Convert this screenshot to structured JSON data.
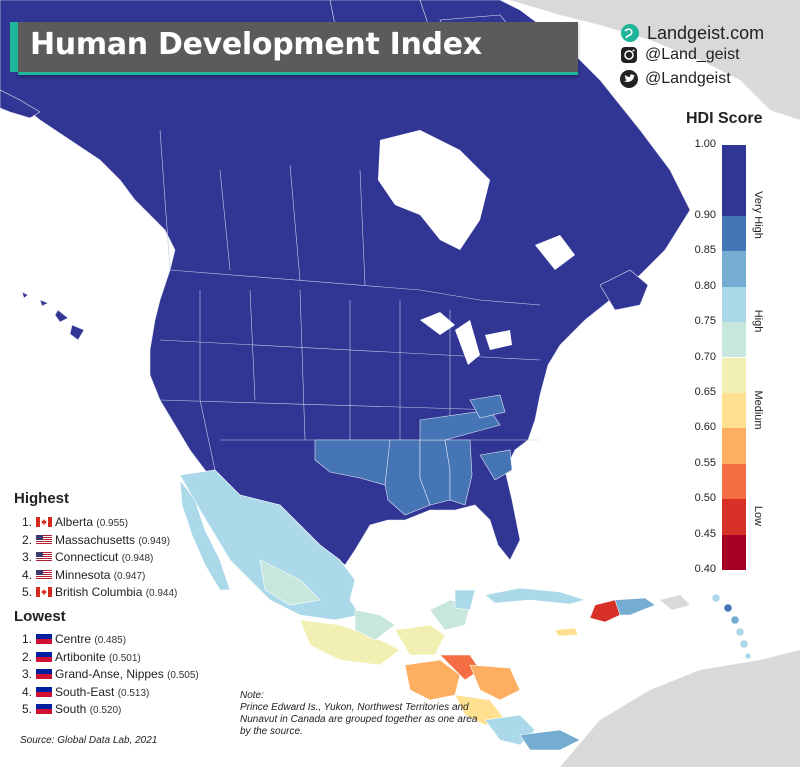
{
  "title": "Human Development Index",
  "branding": {
    "site": "Landgeist.com",
    "instagram": "@Land_geist",
    "twitter": "@Landgeist"
  },
  "legend": {
    "title": "HDI Score",
    "ticks": [
      "1.00",
      "0.90",
      "0.85",
      "0.80",
      "0.75",
      "0.70",
      "0.65",
      "0.60",
      "0.55",
      "0.50",
      "0.45",
      "0.40"
    ],
    "bins": [
      {
        "from": 0.9,
        "to": 1.0,
        "color": "#313695"
      },
      {
        "from": 0.85,
        "to": 0.9,
        "color": "#4575b4"
      },
      {
        "from": 0.8,
        "to": 0.85,
        "color": "#74add1"
      },
      {
        "from": 0.75,
        "to": 0.8,
        "color": "#abd9e9"
      },
      {
        "from": 0.7,
        "to": 0.75,
        "color": "#c7e7dc"
      },
      {
        "from": 0.65,
        "to": 0.7,
        "color": "#f1efb2"
      },
      {
        "from": 0.6,
        "to": 0.65,
        "color": "#fee090"
      },
      {
        "from": 0.55,
        "to": 0.6,
        "color": "#fdae61"
      },
      {
        "from": 0.5,
        "to": 0.55,
        "color": "#f46d43"
      },
      {
        "from": 0.45,
        "to": 0.5,
        "color": "#d73027"
      },
      {
        "from": 0.4,
        "to": 0.45,
        "color": "#a50026"
      }
    ],
    "categories": [
      {
        "label": "Very High",
        "from": 0.8,
        "to": 1.0
      },
      {
        "label": "High",
        "from": 0.7,
        "to": 0.8
      },
      {
        "label": "Medium",
        "from": 0.55,
        "to": 0.7
      },
      {
        "label": "Low",
        "from": 0.4,
        "to": 0.55
      }
    ]
  },
  "highest": {
    "heading": "Highest",
    "items": [
      {
        "rank": "1.",
        "name": "Alberta",
        "value": "(0.955)",
        "flag": "canada"
      },
      {
        "rank": "2.",
        "name": "Massachusetts",
        "value": "(0.949)",
        "flag": "usa"
      },
      {
        "rank": "3.",
        "name": "Connecticut",
        "value": "(0.948)",
        "flag": "usa"
      },
      {
        "rank": "4.",
        "name": "Minnesota",
        "value": "(0.947)",
        "flag": "usa"
      },
      {
        "rank": "5.",
        "name": "British Columbia",
        "value": "(0.944)",
        "flag": "canada"
      }
    ]
  },
  "lowest": {
    "heading": "Lowest",
    "items": [
      {
        "rank": "1.",
        "name": "Centre",
        "value": "(0.485)",
        "flag": "haiti"
      },
      {
        "rank": "2.",
        "name": "Artibonite",
        "value": "(0.501)",
        "flag": "haiti"
      },
      {
        "rank": "3.",
        "name": "Grand-Anse, Nippes",
        "value": "(0.505)",
        "flag": "haiti"
      },
      {
        "rank": "4.",
        "name": "South-East",
        "value": "(0.513)",
        "flag": "haiti"
      },
      {
        "rank": "5.",
        "name": "South",
        "value": "(0.520)",
        "flag": "haiti"
      }
    ]
  },
  "note": "Note:\nPrince Edward Is., Yukon, Northwest Territories and Nunavut in Canada are grouped together as one area by the source.",
  "source": "Source: Global Data Lab, 2021",
  "colors": {
    "very_high_dark": "#313695",
    "land_outside": "#d9d9d9",
    "sea": "#ffffff",
    "title_bg": "#5b5b5b",
    "title_accent": "#1fb59a"
  },
  "icons": [
    "globe-icon",
    "instagram-icon",
    "twitter-icon"
  ]
}
